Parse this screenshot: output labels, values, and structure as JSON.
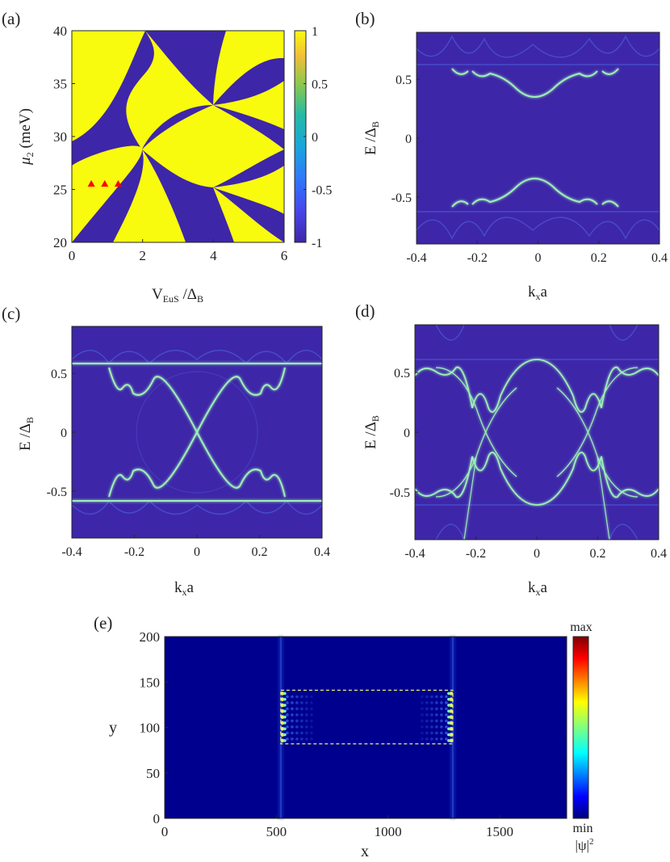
{
  "panels": [
    {
      "id": "a",
      "label": "(a)",
      "chart_data": {
        "type": "heatmap",
        "xlabel": "V",
        "xlabel_sub": "EuS",
        "xlabel_rest": " /Δ",
        "xlabel_sub2": "B",
        "ylabel": "μ",
        "ylabel_sub": "2",
        "ylabel_rest": " (meV)",
        "xlim": [
          0,
          6
        ],
        "ylim": [
          20,
          40
        ],
        "xticks": [
          "0",
          "2",
          "4",
          "6"
        ],
        "yticks": [
          "20",
          "25",
          "30",
          "35",
          "40"
        ],
        "colorbar": {
          "range": [
            -1,
            1
          ],
          "ticks": [
            "1",
            "0.5",
            "0",
            "-0.5",
            "-1"
          ],
          "colormap": "parula"
        },
        "values_present": [
          -1,
          1
        ],
        "high_color": "#F9FB0E",
        "low_color": "#3E26A8",
        "markers": [
          {
            "x": 0.55,
            "y": 25.5,
            "color": "#ff0000",
            "shape": "triangle"
          },
          {
            "x": 0.93,
            "y": 25.5,
            "color": "#ff0000",
            "shape": "triangle"
          },
          {
            "x": 1.31,
            "y": 25.5,
            "color": "#ff0000",
            "shape": "triangle"
          }
        ]
      }
    },
    {
      "id": "b",
      "label": "(b)",
      "chart_data": {
        "type": "heatmap",
        "xlabel": "k",
        "xlabel_sub": "x",
        "xlabel_rest": "a",
        "ylabel": "E /Δ",
        "ylabel_sub": "B",
        "xlim": [
          -0.4,
          0.4
        ],
        "ylim": [
          -0.9,
          0.9
        ],
        "xticks": [
          "-0.4",
          "-0.2",
          "0",
          "0.2",
          "0.4"
        ],
        "yticks": [
          "-0.5",
          "0",
          "0.5"
        ],
        "bulk_gap_edge": 0.6,
        "gap_minimum_at_k0": 0.38
      }
    },
    {
      "id": "c",
      "label": "(c)",
      "chart_data": {
        "type": "heatmap",
        "xlabel": "k",
        "xlabel_sub": "x",
        "xlabel_rest": "a",
        "ylabel": "E /Δ",
        "ylabel_sub": "B",
        "xlim": [
          -0.4,
          0.4
        ],
        "ylim": [
          -0.9,
          0.9
        ],
        "xticks": [
          "-0.4",
          "-0.2",
          "0",
          "0.2",
          "0.4"
        ],
        "yticks": [
          "-0.5",
          "0",
          "0.5"
        ],
        "bulk_gap_edge": 0.6,
        "crossing_at": [
          0,
          0
        ]
      }
    },
    {
      "id": "d",
      "label": "(d)",
      "chart_data": {
        "type": "heatmap",
        "xlabel": "k",
        "xlabel_sub": "x",
        "xlabel_rest": "a",
        "ylabel": "E /Δ",
        "ylabel_sub": "B",
        "xlim": [
          -0.4,
          0.4
        ],
        "ylim": [
          -0.9,
          0.9
        ],
        "xticks": [
          "-0.4",
          "-0.2",
          "0",
          "0.2",
          "0.4"
        ],
        "yticks": [
          "-0.5",
          "0",
          "0.5"
        ],
        "bulk_gap_edge": 0.6,
        "gap_minimum_at_k0": 0.4
      }
    },
    {
      "id": "e",
      "label": "(e)",
      "chart_data": {
        "type": "heatmap",
        "xlabel": "x",
        "ylabel": "y",
        "xlim": [
          0,
          1800
        ],
        "ylim": [
          0,
          200
        ],
        "xticks": [
          "0",
          "500",
          "1000",
          "1500"
        ],
        "yticks": [
          "0",
          "50",
          "100",
          "150",
          "200"
        ],
        "colorbar": {
          "top_label": "max",
          "bottom_label": "min",
          "quantity": "|ψ|",
          "quantity_sup": "2",
          "colormap": "jet"
        },
        "dashed_box": {
          "x": [
            520,
            1290
          ],
          "y": [
            82,
            141
          ]
        },
        "localized_edges_x": [
          520,
          1290
        ]
      }
    }
  ]
}
